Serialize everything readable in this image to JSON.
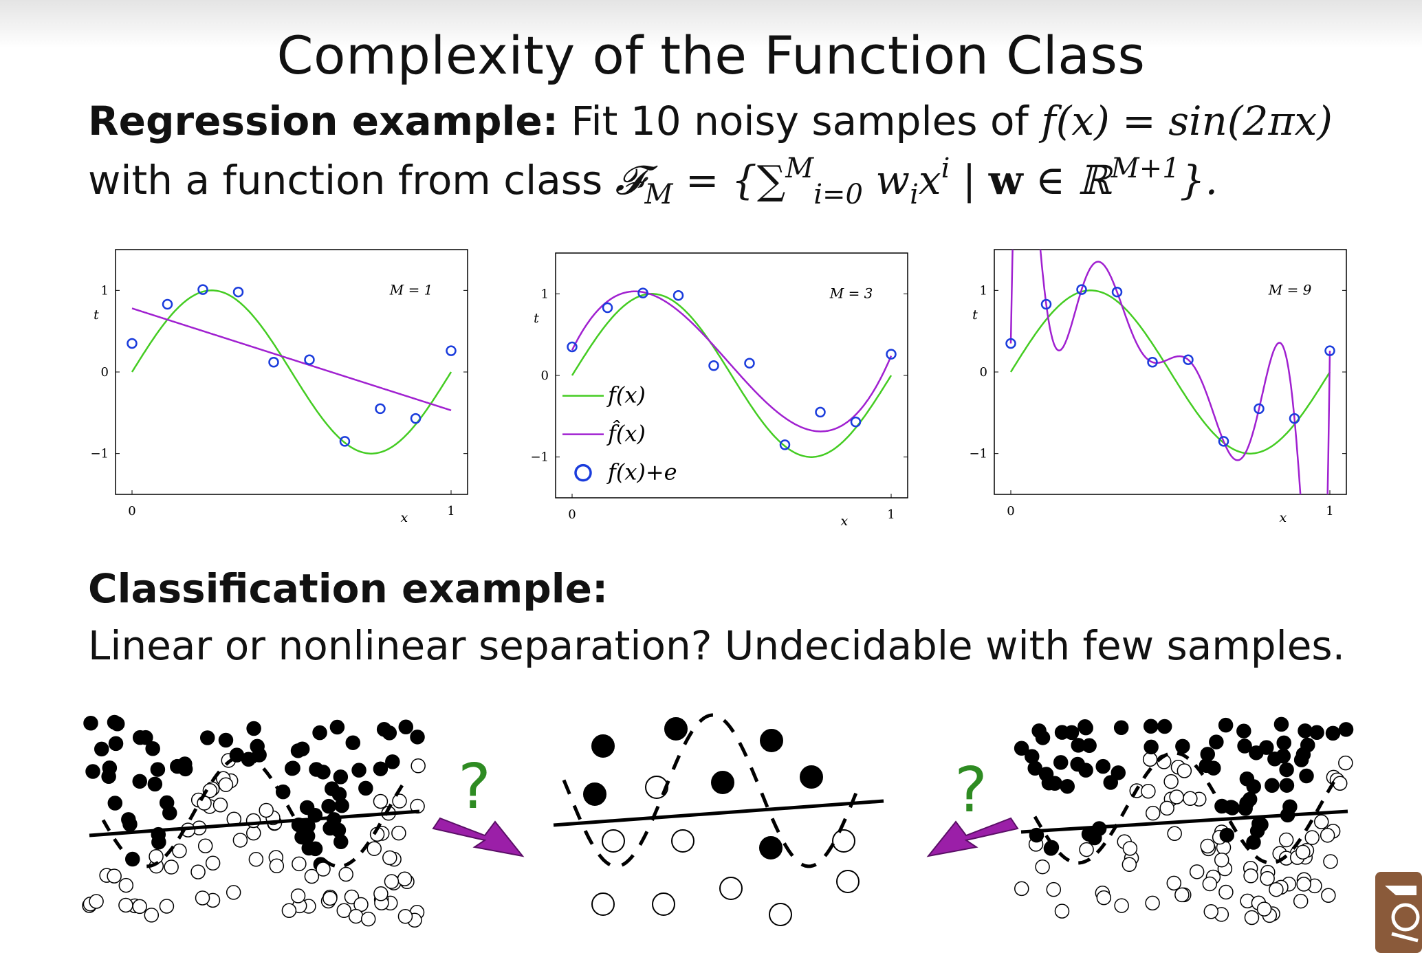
{
  "slide": {
    "title": "Complexity of the Function Class",
    "regression_heading": "Regression example:",
    "regression_text_1": "Fit 10 noisy samples of",
    "regression_formula_1": "f(x) = sin(2πx)",
    "regression_text_2": "with a function from class",
    "regression_formula_2_lhs": "𝓕",
    "regression_formula_2_M": "M",
    "regression_formula_2_eq": " = {∑",
    "regression_formula_2_sumsup": "M",
    "regression_formula_2_sumsub": "i=0",
    "regression_formula_2_term": " w",
    "regression_formula_2_i": "i",
    "regression_formula_2_x": "x",
    "regression_formula_2_xi": "i",
    "regression_formula_2_bar": " | ",
    "regression_formula_2_w": "w",
    "regression_formula_2_in": " ∈ ℝ",
    "regression_formula_2_dim": "M+1",
    "regression_formula_2_close": "}.",
    "classification_heading": "Classification example:",
    "classification_text": "Linear or nonlinear separation? Undecidable with few samples.",
    "question_mark": "?"
  },
  "colors": {
    "true_function": "#44cc22",
    "fitted_function": "#a020d0",
    "samples": "#1a3cdc",
    "arrow": "#9b1fa8",
    "question": "#2e8b22"
  },
  "legend": {
    "true": "f(x)",
    "fit": "f̂(x)",
    "samples": "f(x)+e"
  },
  "chart_data": [
    {
      "type": "line",
      "label": "M = 1",
      "xlabel": "x",
      "ylabel": "t",
      "xlim": [
        0,
        1
      ],
      "ylim": [
        -1.5,
        1.5
      ],
      "xticks": [
        "0",
        "1"
      ],
      "yticks": [
        "−1",
        "0",
        "1"
      ],
      "samples": {
        "x": [
          0.0,
          0.111,
          0.222,
          0.333,
          0.444,
          0.556,
          0.667,
          0.778,
          0.889,
          1.0
        ],
        "y": [
          0.35,
          0.83,
          1.01,
          0.98,
          0.12,
          0.15,
          -0.85,
          -0.45,
          -0.57,
          0.26
        ]
      },
      "fit_coefficients": [
        0.78,
        -1.25
      ]
    },
    {
      "type": "line",
      "label": "M = 3",
      "xlabel": "x",
      "ylabel": "t",
      "xlim": [
        0,
        1
      ],
      "ylim": [
        -1.5,
        1.5
      ],
      "xticks": [
        "0",
        "1"
      ],
      "yticks": [
        "−1",
        "0",
        "1"
      ],
      "samples": {
        "x": [
          0.0,
          0.111,
          0.222,
          0.333,
          0.444,
          0.556,
          0.667,
          0.778,
          0.889,
          1.0
        ],
        "y": [
          0.35,
          0.83,
          1.01,
          0.98,
          0.12,
          0.15,
          -0.85,
          -0.45,
          -0.57,
          0.26
        ]
      },
      "fit_coefficients": [
        0.31,
        7.99,
        -25.43,
        17.37
      ]
    },
    {
      "type": "line",
      "label": "M = 9",
      "xlabel": "x",
      "ylabel": "t",
      "xlim": [
        0,
        1
      ],
      "ylim": [
        -1.5,
        1.5
      ],
      "xticks": [
        "0",
        "1"
      ],
      "yticks": [
        "−1",
        "0",
        "1"
      ],
      "samples": {
        "x": [
          0.0,
          0.111,
          0.222,
          0.333,
          0.444,
          0.556,
          0.667,
          0.778,
          0.889,
          1.0
        ],
        "y": [
          0.35,
          0.83,
          1.01,
          0.98,
          0.12,
          0.15,
          -0.85,
          -0.45,
          -0.57,
          0.26
        ]
      },
      "fit": "interpolating"
    }
  ]
}
